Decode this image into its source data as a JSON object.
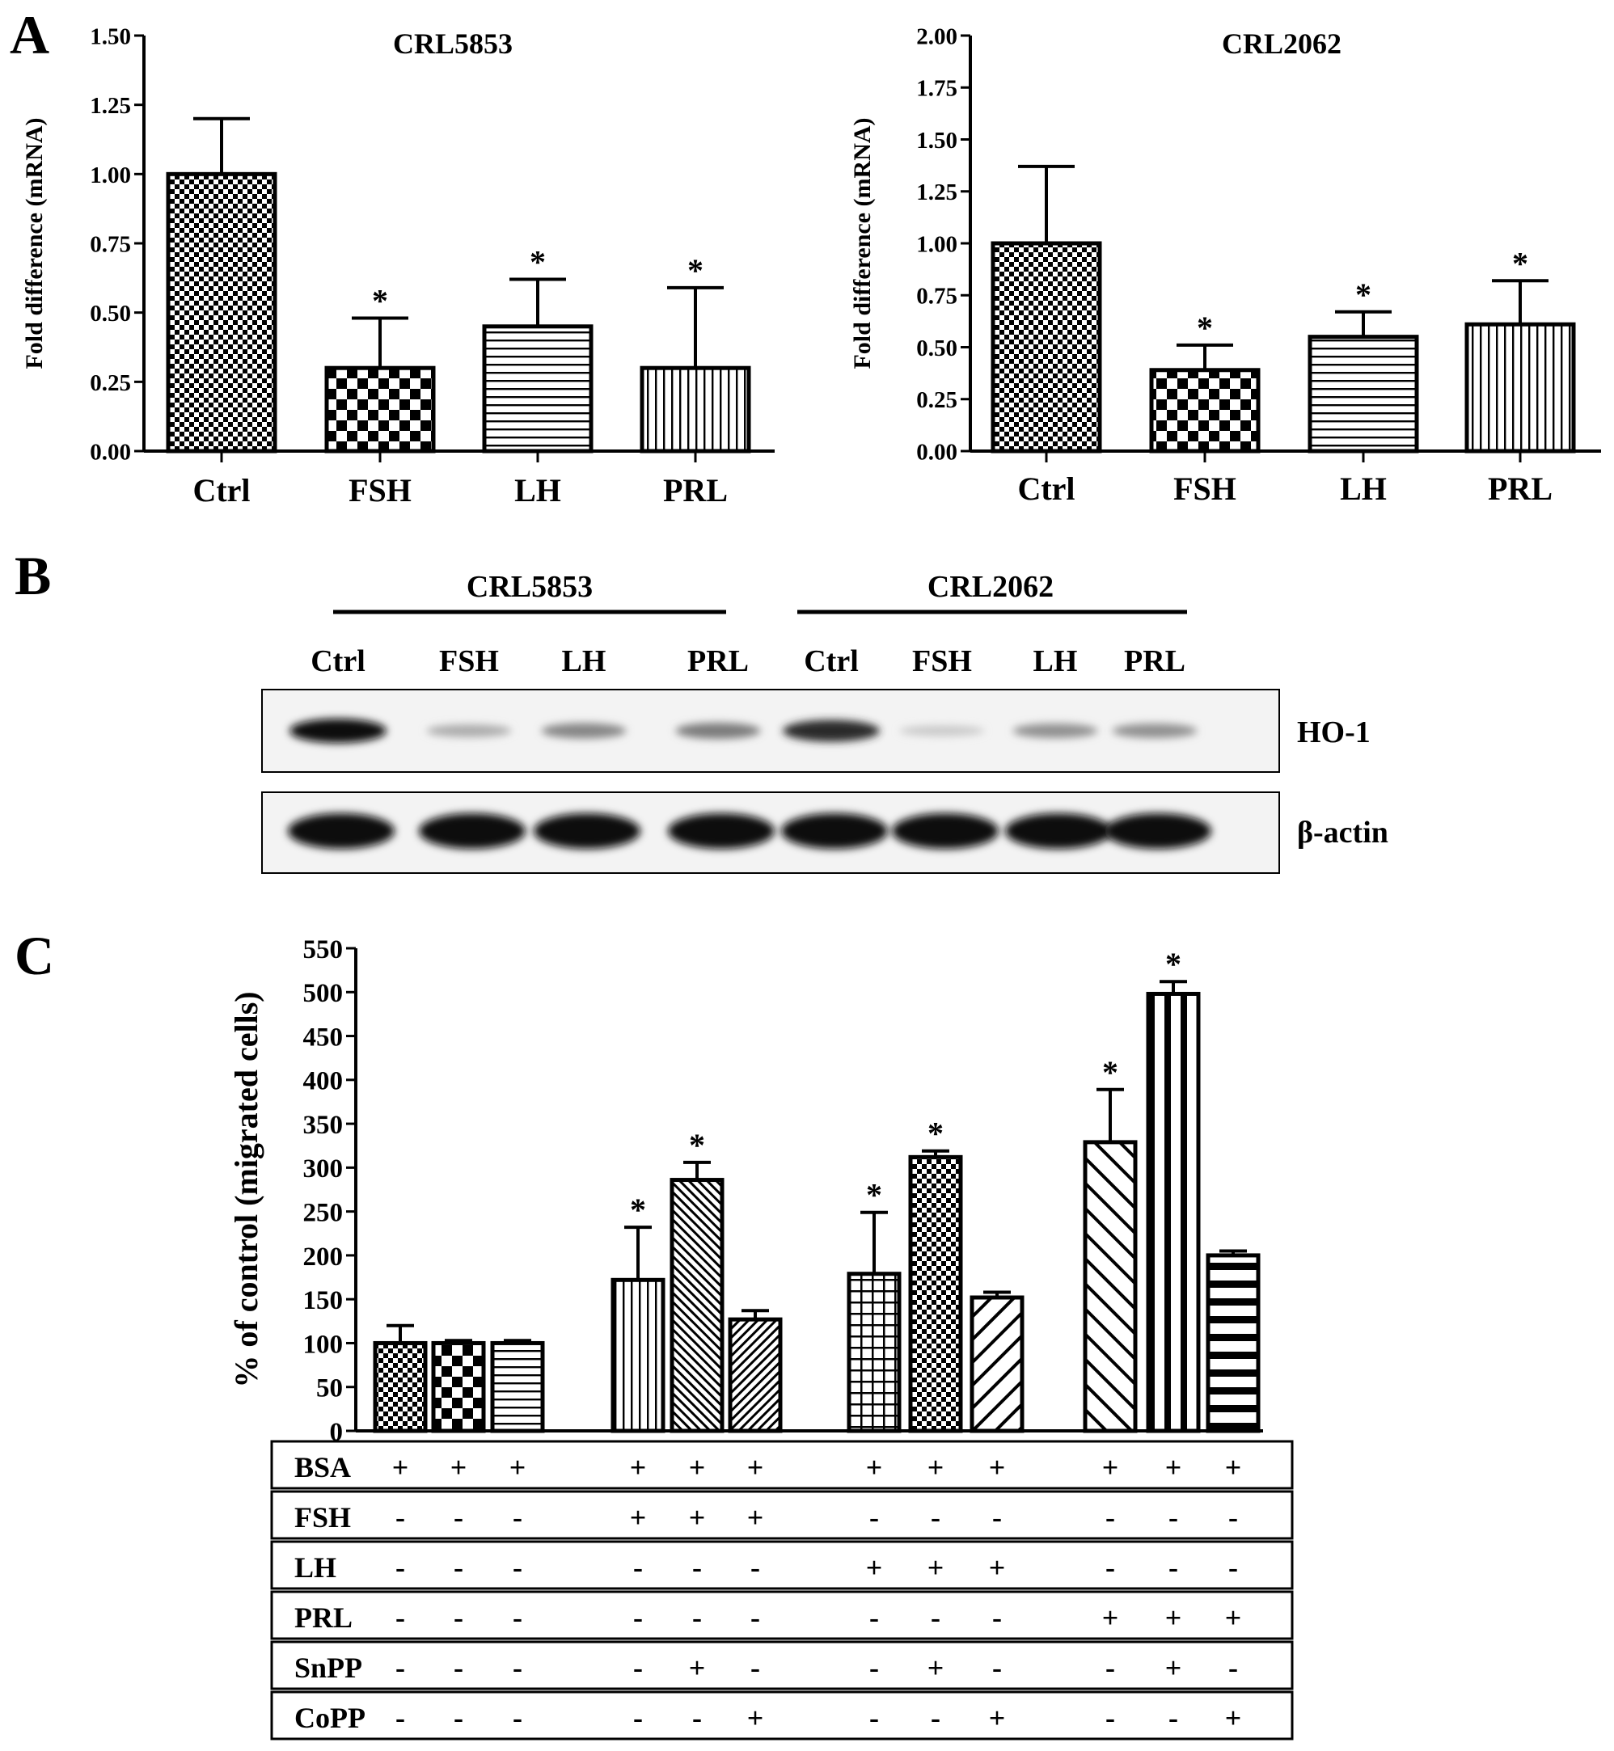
{
  "panels": {
    "a": "A",
    "b": "B",
    "c": "C"
  },
  "chart_data": [
    {
      "type": "bar",
      "title": "CRL5853",
      "ylabel": "Fold difference (mRNA)",
      "categories": [
        "Ctrl",
        "FSH",
        "LH",
        "PRL"
      ],
      "values": [
        1.0,
        0.3,
        0.45,
        0.3
      ],
      "errors": [
        0.2,
        0.18,
        0.17,
        0.29
      ],
      "significance": [
        "",
        "*",
        "*",
        "*"
      ],
      "patterns": [
        "checker-small",
        "checker-large",
        "horizontal",
        "vertical"
      ],
      "ylim": [
        0,
        1.5
      ],
      "yticks": [
        "0.00",
        "0.25",
        "0.50",
        "0.75",
        "1.00",
        "1.25",
        "1.50"
      ],
      "grid": false
    },
    {
      "type": "bar",
      "title": "CRL2062",
      "ylabel": "Fold difference (mRNA)",
      "categories": [
        "Ctrl",
        "FSH",
        "LH",
        "PRL"
      ],
      "values": [
        1.0,
        0.39,
        0.55,
        0.61
      ],
      "errors": [
        0.37,
        0.12,
        0.12,
        0.21
      ],
      "significance": [
        "",
        "*",
        "*",
        "*"
      ],
      "patterns": [
        "checker-small",
        "checker-large",
        "horizontal",
        "vertical"
      ],
      "ylim": [
        0,
        2.0
      ],
      "yticks": [
        "0.00",
        "0.25",
        "0.50",
        "0.75",
        "1.00",
        "1.25",
        "1.50",
        "1.75",
        "2.00"
      ],
      "grid": false
    },
    {
      "type": "bar",
      "ylabel": "% of control (migrated cells)",
      "values": [
        100,
        100,
        100,
        172,
        286,
        127,
        179,
        312,
        152,
        329,
        498,
        200
      ],
      "errors": [
        20,
        3,
        3,
        60,
        20,
        10,
        70,
        7,
        6,
        60,
        14,
        5
      ],
      "significance": [
        "",
        "",
        "",
        "*",
        "*",
        "",
        "*",
        "*",
        "",
        "*",
        "*",
        ""
      ],
      "patterns": [
        "checker-small",
        "checker-large",
        "horizontal",
        "vertical",
        "diag-fine",
        "diag-back-fine",
        "grid",
        "checker-small",
        "diag-back",
        "diag",
        "vertical-bold",
        "horizontal-bold"
      ],
      "ylim": [
        0,
        550
      ],
      "yticks": [
        "0",
        "50",
        "100",
        "150",
        "200",
        "250",
        "300",
        "350",
        "400",
        "450",
        "500",
        "550"
      ],
      "treatments": [
        {
          "label": "BSA",
          "marks": [
            "+",
            "+",
            "+",
            "+",
            "+",
            "+",
            "+",
            "+",
            "+",
            "+",
            "+",
            "+"
          ]
        },
        {
          "label": "FSH",
          "marks": [
            "-",
            "-",
            "-",
            "+",
            "+",
            "+",
            "-",
            "-",
            "-",
            "-",
            "-",
            "-"
          ]
        },
        {
          "label": "LH",
          "marks": [
            "-",
            "-",
            "-",
            "-",
            "-",
            "-",
            "+",
            "+",
            "+",
            "-",
            "-",
            "-"
          ]
        },
        {
          "label": "PRL",
          "marks": [
            "-",
            "-",
            "-",
            "-",
            "-",
            "-",
            "-",
            "-",
            "-",
            "+",
            "+",
            "+"
          ]
        },
        {
          "label": "SnPP",
          "marks": [
            "-",
            "-",
            "-",
            "-",
            "+",
            "-",
            "-",
            "+",
            "-",
            "-",
            "+",
            "-"
          ]
        },
        {
          "label": "CoPP",
          "marks": [
            "-",
            "-",
            "-",
            "-",
            "-",
            "+",
            "-",
            "-",
            "+",
            "-",
            "-",
            "+"
          ]
        }
      ],
      "grid": false
    }
  ],
  "blot": {
    "groups": [
      "CRL5853",
      "CRL2062"
    ],
    "lanes": [
      "Ctrl",
      "FSH",
      "LH",
      "PRL",
      "Ctrl",
      "FSH",
      "LH",
      "PRL"
    ],
    "rows": [
      {
        "label": "HO-1",
        "intensities": [
          1.0,
          0.28,
          0.45,
          0.5,
          0.85,
          0.15,
          0.4,
          0.4
        ]
      },
      {
        "label": "β-actin",
        "intensities": [
          1.0,
          1.0,
          1.0,
          1.0,
          1.0,
          1.0,
          1.0,
          1.0
        ]
      }
    ]
  }
}
